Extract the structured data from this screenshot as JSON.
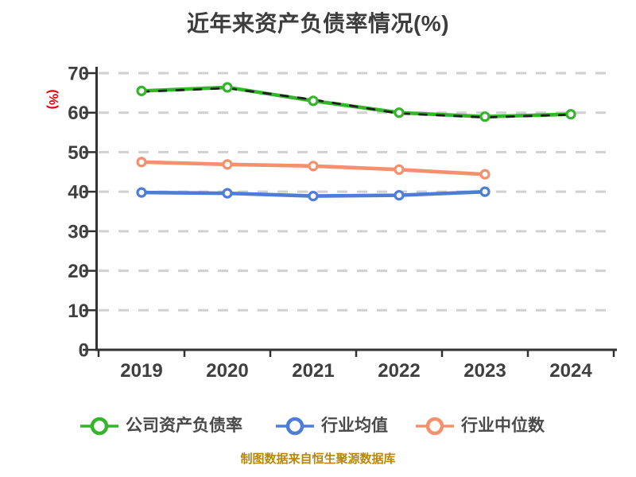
{
  "title": "近年来资产负债率情况(%)",
  "footer": "制图数据来自恒生聚源数据库",
  "y_unit_label": "(%)",
  "colors": {
    "title_text": "#3d3d3d",
    "axis_line": "#333333",
    "tick_label": "#3f3f3f",
    "gridline": "#d0d0d0",
    "y_unit": "#e30000",
    "footer_text": "#b8860b",
    "legend_text": "#4a4a4a",
    "series_company": "#34b52b",
    "series_mean": "#4d7cd9",
    "series_median": "#f5906e",
    "dashed_overlay": "#1f1f1f"
  },
  "chart_data": {
    "type": "line",
    "title": "近年来资产负债率情况(%)",
    "ylabel": "(%)",
    "xlabel": "",
    "categories": [
      "2019",
      "2020",
      "2021",
      "2022",
      "2023",
      "2024"
    ],
    "ylim": [
      0,
      70
    ],
    "yticks": [
      0,
      10,
      20,
      30,
      40,
      50,
      60,
      70
    ],
    "grid": "horizontal-dashed",
    "legend_position": "bottom",
    "series": [
      {
        "name": "行业中位数",
        "color": "#f5906e",
        "line_style": "solid",
        "markers": true,
        "show_in_legend": true,
        "values": [
          47.5,
          46.9,
          46.5,
          45.6,
          44.4,
          null
        ]
      },
      {
        "name": "行业均值",
        "color": "#4d7cd9",
        "line_style": "solid",
        "markers": true,
        "show_in_legend": true,
        "values": [
          39.8,
          39.6,
          38.9,
          39.1,
          40.0,
          null
        ]
      },
      {
        "name": "公司资产负债率",
        "color": "#34b52b",
        "line_style": "solid",
        "markers": true,
        "show_in_legend": true,
        "values": [
          65.5,
          66.4,
          63.0,
          60.0,
          59.0,
          59.6
        ]
      },
      {
        "name": "公司资产负债率虚线叠加",
        "color": "#1f1f1f",
        "line_style": "dashed",
        "markers": false,
        "show_in_legend": false,
        "values": [
          65.3,
          66.2,
          63.3,
          59.8,
          58.8,
          59.5
        ]
      }
    ]
  },
  "legend": {
    "items": [
      {
        "label": "公司资产负债率",
        "color": "#34b52b"
      },
      {
        "label": "行业均值",
        "color": "#4d7cd9"
      },
      {
        "label": "行业中位数",
        "color": "#f5906e"
      }
    ]
  }
}
